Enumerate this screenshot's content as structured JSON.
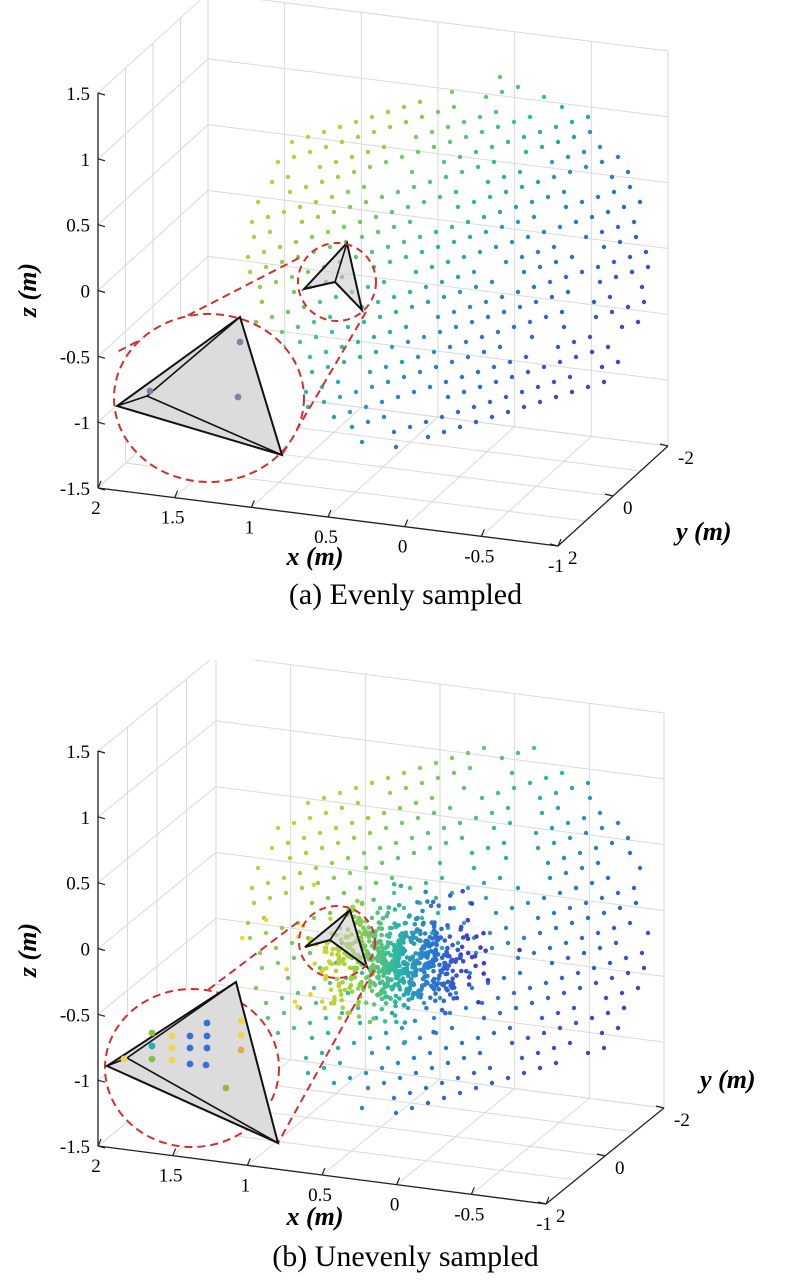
{
  "chart_data": [
    {
      "type": "scatter",
      "subtype": "3d-scatter",
      "caption": "(a) Evenly sampled",
      "xlabel": "x (m)",
      "ylabel": "y (m)",
      "zlabel": "z (m)",
      "xlim": [
        -1,
        2
      ],
      "ylim": [
        -2,
        2
      ],
      "zlim": [
        -1.5,
        1.5
      ],
      "x_ticks": [
        "2",
        "1.5",
        "1",
        "0.5",
        "0",
        "-0.5",
        "-1"
      ],
      "y_ticks": [
        "-2",
        "0",
        "2"
      ],
      "z_ticks": [
        "1.5",
        "1",
        "0.5",
        "0",
        "-0.5",
        "-1",
        "-1.5"
      ],
      "grid": true,
      "sampling": "even",
      "sample_count_approx": 1500,
      "colormap": "viridis-like (yellow → green → teal → blue)",
      "inset": {
        "description": "zoomed tetrahedron with sampled points",
        "highlight_color": "#d62d2d"
      }
    },
    {
      "type": "scatter",
      "subtype": "3d-scatter",
      "caption": "(b) Unevenly sampled",
      "xlabel": "x (m)",
      "ylabel": "y (m)",
      "zlabel": "z (m)",
      "xlim": [
        -1,
        2
      ],
      "ylim": [
        -2,
        2
      ],
      "zlim": [
        -1.5,
        1.5
      ],
      "x_ticks": [
        "2",
        "1.5",
        "1",
        "0.5",
        "0",
        "-0.5",
        "-1"
      ],
      "y_ticks": [
        "-2",
        "0",
        "2"
      ],
      "z_ticks": [
        "1.5",
        "1",
        "0.5",
        "0",
        "-0.5",
        "-1",
        "-1.5"
      ],
      "grid": true,
      "sampling": "uneven (dense cluster near origin)",
      "sample_count_approx": 1800,
      "colormap": "viridis-like (yellow → green → teal → blue)",
      "inset": {
        "description": "zoomed tetrahedron with densely sampled points",
        "highlight_color": "#d62d2d"
      }
    }
  ]
}
